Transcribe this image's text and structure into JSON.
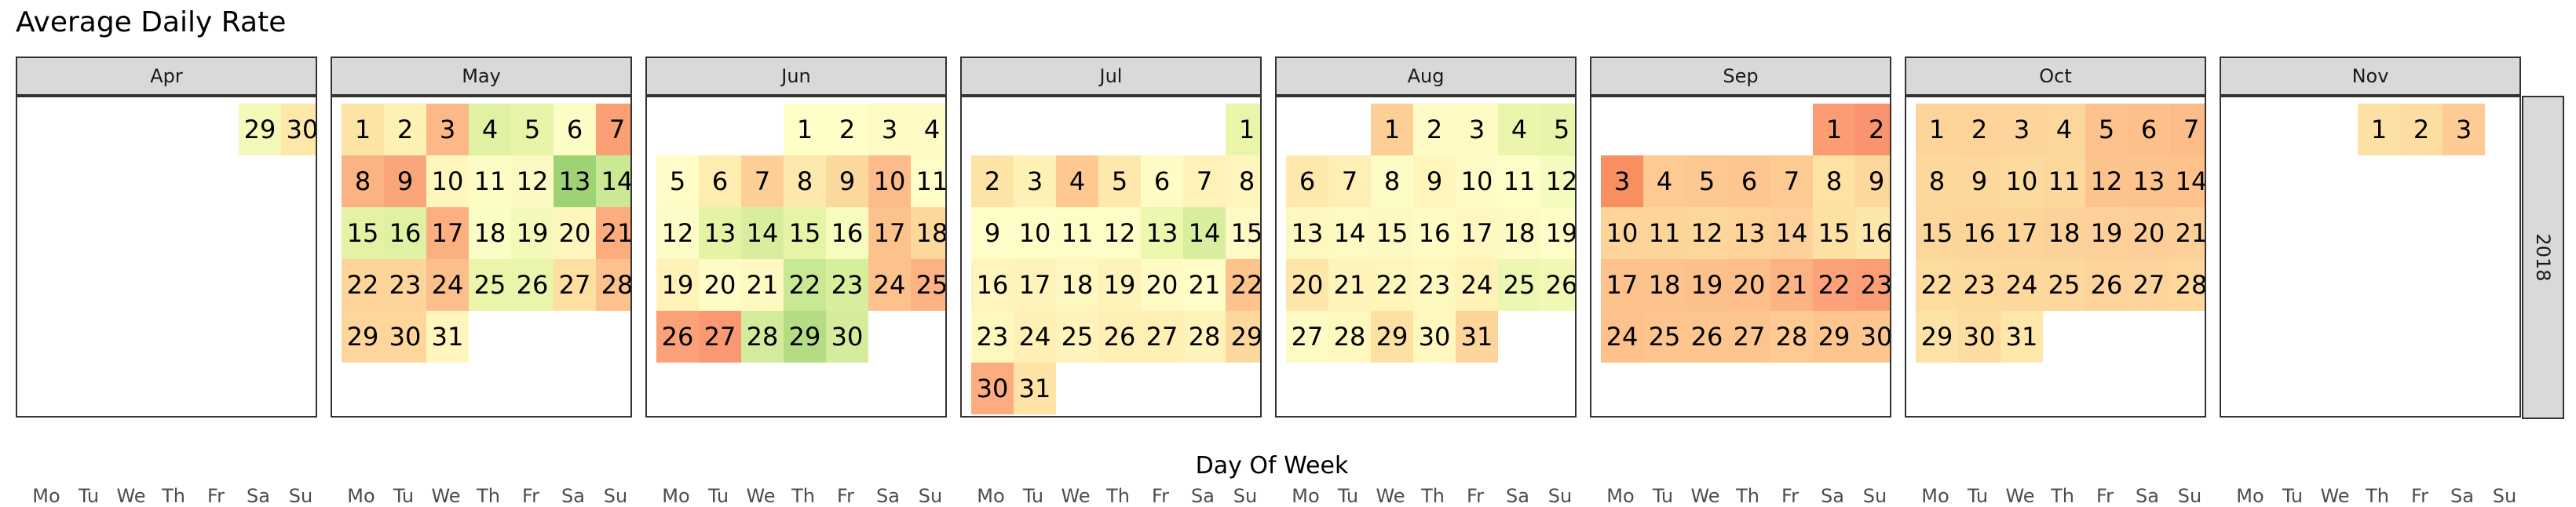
{
  "chart_data": {
    "type": "heatmap",
    "title": "Average Daily Rate",
    "xlabel": "Day Of Week",
    "ylabel": "",
    "facet_row": "2018",
    "weekdays": [
      "Mo",
      "Tu",
      "We",
      "Th",
      "Fr",
      "Sa",
      "Su"
    ],
    "months": [
      {
        "name": "Apr",
        "first_dow": 6,
        "days": [
          29,
          30
        ],
        "colors": [
          "#f3f9b8",
          "#fde8a9"
        ]
      },
      {
        "name": "May",
        "first_dow": 1,
        "days": [
          1,
          2,
          3,
          4,
          5,
          6,
          7,
          8,
          9,
          10,
          11,
          12,
          13,
          14,
          15,
          16,
          17,
          18,
          19,
          20,
          21,
          22,
          23,
          24,
          25,
          26,
          27,
          28,
          29,
          30,
          31
        ],
        "colors": [
          "#fde3a4",
          "#fdf2b3",
          "#fcb987",
          "#e0f1a2",
          "#e8f4a7",
          "#fbfdc5",
          "#fb9f75",
          "#fbb383",
          "#fba57a",
          "#fff6be",
          "#fdfcc5",
          "#fdf9c2",
          "#9fd175",
          "#cbe894",
          "#e3f2a4",
          "#e1f1a3",
          "#fcb082",
          "#fafdc4",
          "#f3f9b9",
          "#fef6bd",
          "#fcac7f",
          "#fdd59a",
          "#fdd49a",
          "#fcbe8a",
          "#eaf5aa",
          "#e9f5aa",
          "#fddfa1",
          "#fdc18b",
          "#fed59b",
          "#fed69b",
          "#fff6be"
        ]
      },
      {
        "name": "Jun",
        "first_dow": 4,
        "days": [
          1,
          2,
          3,
          4,
          5,
          6,
          7,
          8,
          9,
          10,
          11,
          12,
          13,
          14,
          15,
          16,
          17,
          18,
          19,
          20,
          21,
          22,
          23,
          24,
          25,
          26,
          27,
          28,
          29,
          30
        ],
        "colors": [
          "#fffdc8",
          "#fffec9",
          "#fefac4",
          "#fefbc6",
          "#fffcc7",
          "#feecb0",
          "#fdcf96",
          "#fde8ad",
          "#fdd89d",
          "#fcbb88",
          "#fefdc7",
          "#fdfcc6",
          "#e4f3a5",
          "#d8ee9e",
          "#e6f4a8",
          "#f7fbbe",
          "#fcc28c",
          "#fdd89d",
          "#fef2b7",
          "#fffbc6",
          "#fff8c1",
          "#c9e893",
          "#d7ee9d",
          "#fdc28c",
          "#fcb281",
          "#fba177",
          "#fa9971",
          "#d3ec9b",
          "#b4dc82",
          "#d5ec9c"
        ]
      },
      {
        "name": "Jul",
        "first_dow": 7,
        "days": [
          1,
          2,
          3,
          4,
          5,
          6,
          7,
          8,
          9,
          10,
          11,
          12,
          13,
          14,
          15,
          16,
          17,
          18,
          19,
          20,
          21,
          22,
          23,
          24,
          25,
          26,
          27,
          28,
          29,
          30,
          31
        ],
        "colors": [
          "#eaf5ab",
          "#fde4a6",
          "#fef1b6",
          "#fdc991",
          "#fee8ac",
          "#fefbc6",
          "#fff2b8",
          "#fef6bd",
          "#fffdc8",
          "#fefdc7",
          "#fefcc7",
          "#fefdc8",
          "#edf7ae",
          "#d8ee9e",
          "#fffac5",
          "#fef5bc",
          "#fef4bb",
          "#fef8c0",
          "#fef3b9",
          "#fffac4",
          "#fefcc7",
          "#fcc38d",
          "#fef8bf",
          "#fff1b6",
          "#fef4bb",
          "#fef0b5",
          "#feefb4",
          "#fef3ba",
          "#fdd89c",
          "#fcac7f",
          "#fde3a5"
        ]
      },
      {
        "name": "Aug",
        "first_dow": 3,
        "days": [
          1,
          2,
          3,
          4,
          5,
          6,
          7,
          8,
          9,
          10,
          11,
          12,
          13,
          14,
          15,
          16,
          17,
          18,
          19,
          20,
          21,
          22,
          23,
          24,
          25,
          26,
          27,
          28,
          29,
          30,
          31
        ],
        "colors": [
          "#fdcf96",
          "#fefbc6",
          "#fffac4",
          "#ebf6ac",
          "#e7f4a9",
          "#fee8ac",
          "#feefb4",
          "#fdfcc6",
          "#fef5bc",
          "#fefbc6",
          "#fefec9",
          "#f5fabf",
          "#fef8c0",
          "#fefac3",
          "#fef9c2",
          "#fefbc5",
          "#fef8c0",
          "#fefac4",
          "#fffcc7",
          "#fde6a9",
          "#fef3b9",
          "#fef5bb",
          "#fef7be",
          "#fff2b7",
          "#eef7b2",
          "#f1f8b4",
          "#fefac3",
          "#fef7be",
          "#fde1a3",
          "#fef8bf",
          "#fdd59a"
        ]
      },
      {
        "name": "Sep",
        "first_dow": 6,
        "days": [
          1,
          2,
          3,
          4,
          5,
          6,
          7,
          8,
          9,
          10,
          11,
          12,
          13,
          14,
          15,
          16,
          17,
          18,
          19,
          20,
          21,
          22,
          23,
          24,
          25,
          26,
          27,
          28,
          29,
          30
        ],
        "colors": [
          "#fb9c73",
          "#fa9470",
          "#f98e61",
          "#fdca92",
          "#fdc791",
          "#fdc58f",
          "#fdcb92",
          "#fde2a4",
          "#fdd79c",
          "#fdd59b",
          "#fdd49a",
          "#fdd69b",
          "#fdd39a",
          "#fdd09a",
          "#fde1a3",
          "#fde6a9",
          "#fdc28c",
          "#fdc38d",
          "#fcc08a",
          "#fcbf8a",
          "#fcb384",
          "#fca27a",
          "#fc9e75",
          "#fdc18b",
          "#fdc48d",
          "#fdc68e",
          "#fdc58e",
          "#fdca91",
          "#fdc48d",
          "#fdc68e"
        ]
      },
      {
        "name": "Oct",
        "first_dow": 1,
        "days": [
          1,
          2,
          3,
          4,
          5,
          6,
          7,
          8,
          9,
          10,
          11,
          12,
          13,
          14,
          15,
          16,
          17,
          18,
          19,
          20,
          21,
          22,
          23,
          24,
          25,
          26,
          27,
          28,
          29,
          30,
          31
        ],
        "colors": [
          "#fdd49a",
          "#fdd39a",
          "#fdd49b",
          "#fdd69c",
          "#fdc28c",
          "#fdc08a",
          "#fdbb88",
          "#fdd89d",
          "#fdd89c",
          "#fdda9e",
          "#fdd89c",
          "#fcc48d",
          "#fdc38c",
          "#fdc18b",
          "#fdd69c",
          "#fdd59b",
          "#fdd59b",
          "#fdd29a",
          "#fdd09a",
          "#fdce98",
          "#fdd09a",
          "#fddc9f",
          "#fdd99c",
          "#fdd89c",
          "#fdd79c",
          "#fdd39a",
          "#fdd49b",
          "#fdd79c",
          "#fde4a6",
          "#fddca0",
          "#fde7aa"
        ]
      },
      {
        "name": "Nov",
        "first_dow": 4,
        "days": [
          1,
          2,
          3
        ],
        "colors": [
          "#fde1a4",
          "#fddda1",
          "#fdcb93"
        ]
      }
    ]
  }
}
